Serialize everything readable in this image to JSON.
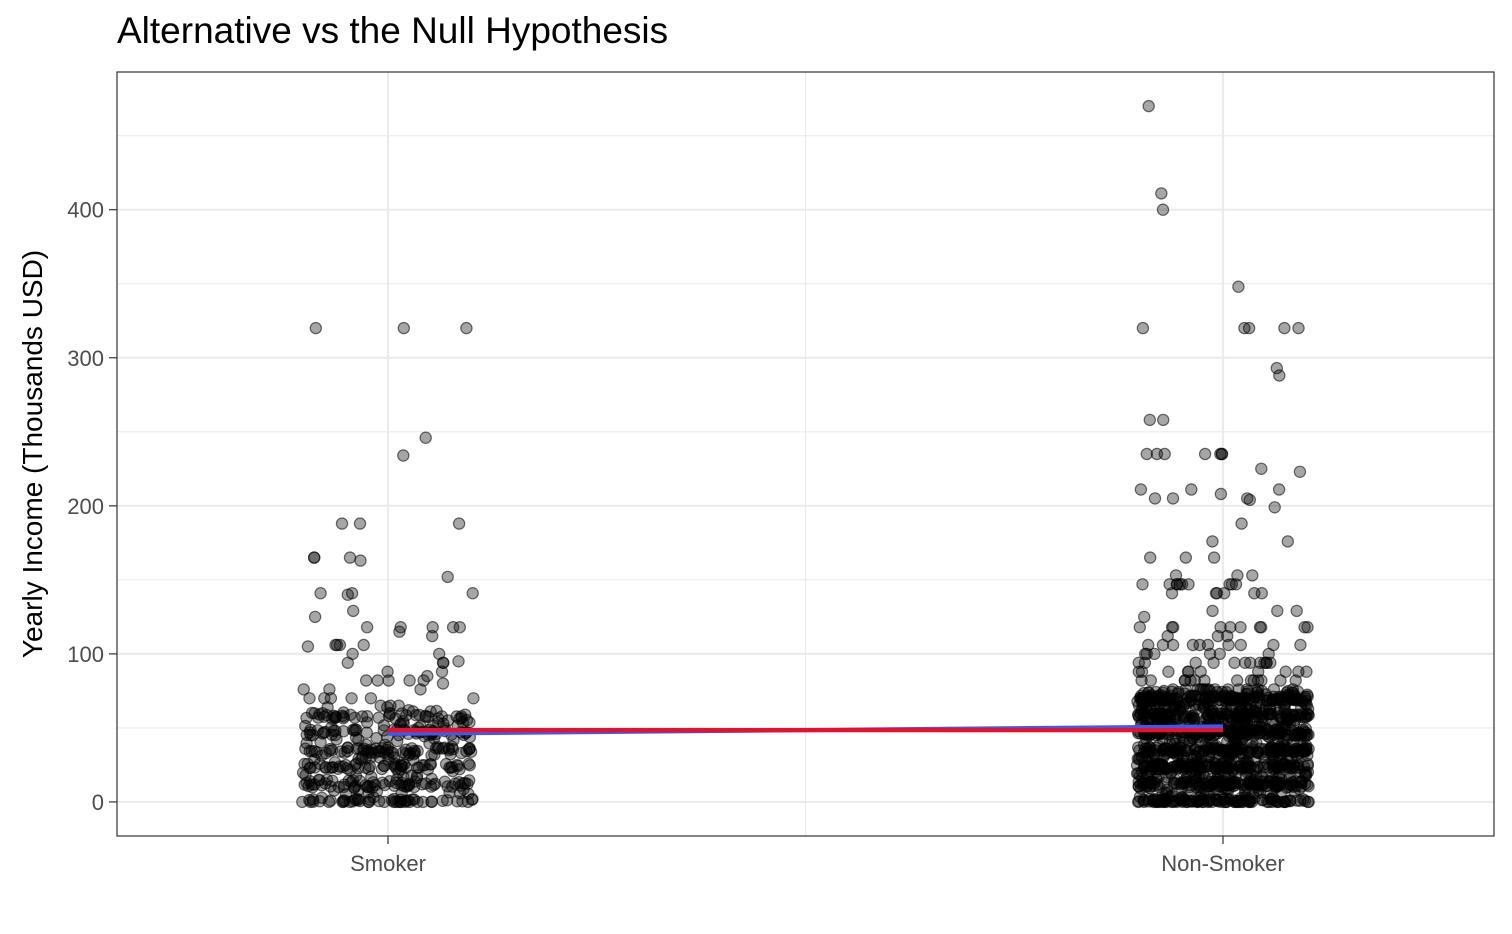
{
  "chart_data": {
    "type": "scatter",
    "title": "Alternative vs the Null Hypothesis",
    "xlabel": "",
    "ylabel": "Yearly Income (Thousands USD)",
    "categories": [
      "Smoker",
      "Non-Smoker"
    ],
    "ylim": [
      -23,
      493
    ],
    "yticks": [
      0,
      100,
      200,
      300,
      400
    ],
    "grid": true,
    "point_color": "#000000",
    "point_opacity": 0.35,
    "series": [
      {
        "category": "Smoker",
        "jitter_seed": 7,
        "values": [
          320,
          320,
          320,
          246,
          234,
          188,
          188,
          188,
          165,
          165,
          165,
          163,
          152,
          141,
          141,
          141,
          140,
          129,
          125,
          118,
          118,
          118,
          118,
          118,
          115,
          112,
          106,
          106,
          106,
          106,
          105,
          100,
          100,
          95,
          94,
          94,
          94,
          88,
          88,
          85,
          82,
          82,
          82,
          82,
          82,
          80,
          76,
          76,
          76,
          70,
          70,
          70,
          70,
          70,
          70,
          65,
          65,
          65,
          64,
          64
        ],
        "bulk": {
          "count": 380,
          "min": 0,
          "max": 62,
          "dense_levels": [
            0,
            12,
            24,
            35,
            47,
            58
          ]
        }
      },
      {
        "category": "Non-Smoker",
        "jitter_seed": 19,
        "values": [
          470,
          411,
          400,
          348,
          320,
          320,
          320,
          320,
          320,
          293,
          288,
          258,
          258,
          235,
          235,
          235,
          235,
          235,
          235,
          235,
          225,
          223,
          211,
          211,
          211,
          208,
          205,
          205,
          205,
          204,
          199,
          188,
          176,
          176,
          165,
          165,
          165,
          153,
          153,
          153,
          147,
          147,
          147,
          147,
          147,
          147,
          147,
          147,
          147,
          147,
          141,
          141,
          141,
          141,
          141,
          141,
          129,
          129,
          129,
          125,
          118,
          118,
          118,
          118,
          118,
          118,
          118,
          118,
          118,
          118,
          112,
          112,
          112,
          106,
          106,
          106,
          106,
          106,
          106,
          106,
          106,
          106,
          106,
          100,
          100,
          100,
          100,
          100,
          100,
          94,
          94,
          94,
          94,
          94,
          94,
          94,
          94,
          94,
          94,
          94,
          94,
          88,
          88,
          88,
          88,
          88,
          88,
          88,
          88,
          88,
          88,
          82,
          82,
          82,
          82,
          82,
          82,
          82,
          82,
          82,
          82,
          82,
          82,
          82,
          82,
          76,
          76,
          76,
          76,
          76,
          76,
          76,
          76,
          76,
          76,
          76,
          76,
          76,
          76,
          76
        ],
        "bulk": {
          "count": 1250,
          "min": 0,
          "max": 75,
          "dense_levels": [
            0,
            12,
            24,
            35,
            47,
            58,
            70
          ]
        }
      }
    ],
    "fit_lines": [
      {
        "name": "Alternative",
        "color": "#3b5bf0",
        "values": [
          46,
          51
        ]
      },
      {
        "name": "Null",
        "color": "#e8102a",
        "values": [
          48.5,
          48.5
        ]
      }
    ]
  }
}
